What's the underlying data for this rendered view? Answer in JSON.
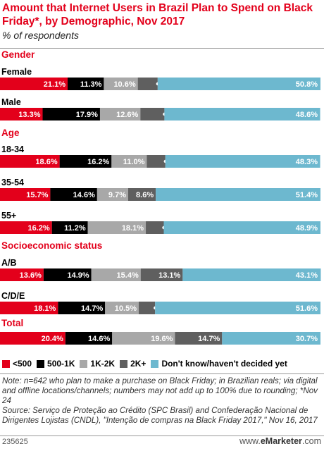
{
  "chart_data": {
    "type": "bar",
    "stacked": true,
    "orientation": "horizontal",
    "title": "Amount that Internet Users in Brazil Plan to Spend on Black Friday*, by Demographic, Nov 2017",
    "subtitle": "% of respondents",
    "xlim": [
      0,
      100
    ],
    "series_colors": [
      "#e3001b",
      "#000000",
      "#a8a8a8",
      "#5f5f5f",
      "#6db8cf"
    ],
    "series": [
      {
        "name": "<500"
      },
      {
        "name": "500-1K"
      },
      {
        "name": "1K-2K"
      },
      {
        "name": "2K+"
      },
      {
        "name": "Don't know/haven't decided yet"
      }
    ],
    "groups": [
      {
        "name": "Gender",
        "rows": [
          {
            "label": "Female",
            "values": [
              21.1,
              11.3,
              10.6,
              6.2,
              50.8
            ],
            "labels": [
              "21.1%",
              "11.3%",
              "10.6%",
              "6.2%",
              "50.8%"
            ]
          },
          {
            "label": "Male",
            "values": [
              13.3,
              17.9,
              12.6,
              7.5,
              48.6
            ],
            "labels": [
              "13.3%",
              "17.9%",
              "12.6%",
              "7.5%",
              "48.6%"
            ]
          }
        ]
      },
      {
        "name": "Age",
        "rows": [
          {
            "label": "18-34",
            "values": [
              18.6,
              16.2,
              11.0,
              5.8,
              48.3
            ],
            "labels": [
              "18.6%",
              "16.2%",
              "11.0%",
              "5.8%",
              "48.3%"
            ]
          },
          {
            "label": "35-54",
            "values": [
              15.7,
              14.6,
              9.7,
              8.6,
              51.4
            ],
            "labels": [
              "15.7%",
              "14.6%",
              "9.7%",
              "8.6%",
              "51.4%"
            ]
          },
          {
            "label": "55+",
            "values": [
              16.2,
              11.2,
              18.1,
              5.6,
              48.9
            ],
            "labels": [
              "16.2%",
              "11.2%",
              "18.1%",
              "5.6%",
              "48.9%"
            ]
          }
        ]
      },
      {
        "name": "Socioeconomic status",
        "rows": [
          {
            "label": "A/B",
            "values": [
              13.6,
              14.9,
              15.4,
              13.1,
              43.1
            ],
            "labels": [
              "13.6%",
              "14.9%",
              "15.4%",
              "13.1%",
              "43.1%"
            ]
          },
          {
            "label": "C/D/E",
            "values": [
              18.1,
              14.7,
              10.5,
              5.1,
              51.6
            ],
            "labels": [
              "18.1%",
              "14.7%",
              "10.5%",
              "5.1%",
              "51.6%"
            ]
          }
        ]
      },
      {
        "name": "Total",
        "rows": [
          {
            "label": "",
            "values": [
              20.4,
              14.6,
              19.6,
              14.7,
              30.7
            ],
            "labels": [
              "20.4%",
              "14.6%",
              "19.6%",
              "14.7%",
              "30.7%"
            ]
          }
        ]
      }
    ]
  },
  "footer": {
    "note": "Note: n=642 who plan to make a purchase on Black Friday; in Brazilian reals; via digital and offline locations/channels; numbers may not add up to 100% due to rounding; *Nov 24",
    "source": "Source: Serviço de Proteção ao Crédito (SPC Brasil) and Confederação Nacional de Dirigentes Lojistas (CNDL), \"Intenção de compras na Black Friday 2017,\" Nov 16, 2017",
    "id": "235625",
    "brand_prefix": "www.",
    "brand_name": "eMarketer",
    "brand_suffix": ".com"
  }
}
